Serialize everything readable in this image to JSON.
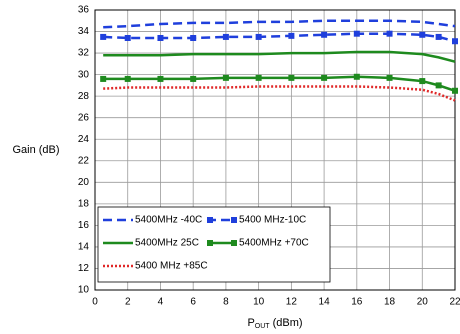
{
  "chart_data": {
    "type": "line",
    "ylabel": "Gain (dB)",
    "xlabel": {
      "main": "P",
      "sub": "OUT",
      "unit": " (dBm)"
    },
    "x": [
      0.5,
      2,
      4,
      6,
      8,
      10,
      12,
      14,
      16,
      18,
      20,
      21,
      22
    ],
    "series": [
      {
        "name": "5400MHz -40C",
        "color": "#1f3fdc",
        "line_style": "dashed",
        "marker": "none",
        "values": [
          34.4,
          34.5,
          34.7,
          34.8,
          34.8,
          34.9,
          34.9,
          35.0,
          35.0,
          35.0,
          34.9,
          34.7,
          34.5
        ]
      },
      {
        "name": "5400 MHz-10C",
        "color": "#1f3fdc",
        "line_style": "dashed",
        "marker": "square",
        "values": [
          33.5,
          33.4,
          33.4,
          33.4,
          33.5,
          33.5,
          33.6,
          33.7,
          33.8,
          33.8,
          33.7,
          33.5,
          33.1
        ]
      },
      {
        "name": "5400MHz 25C",
        "color": "#1e8a1e",
        "line_style": "solid",
        "marker": "none",
        "values": [
          31.8,
          31.8,
          31.8,
          31.9,
          31.9,
          31.9,
          32.0,
          32.0,
          32.1,
          32.1,
          31.9,
          31.6,
          31.2
        ]
      },
      {
        "name": "5400MHz +70C",
        "color": "#1e8a1e",
        "line_style": "solid",
        "marker": "square",
        "values": [
          29.6,
          29.6,
          29.6,
          29.6,
          29.7,
          29.7,
          29.7,
          29.7,
          29.8,
          29.7,
          29.4,
          29.0,
          28.5
        ]
      },
      {
        "name": "5400 MHz +85C",
        "color": "#e02828",
        "line_style": "dotted",
        "marker": "none",
        "values": [
          28.7,
          28.8,
          28.8,
          28.8,
          28.8,
          28.9,
          28.9,
          28.9,
          28.9,
          28.8,
          28.6,
          28.2,
          27.6
        ]
      }
    ],
    "xlim": [
      0,
      22
    ],
    "xticks": [
      0,
      2,
      4,
      6,
      8,
      10,
      12,
      14,
      16,
      18,
      20,
      22
    ],
    "ylim": [
      10,
      36
    ],
    "yticks": [
      10,
      12,
      14,
      16,
      18,
      20,
      22,
      24,
      26,
      28,
      30,
      32,
      34,
      36
    ],
    "grid": true
  }
}
